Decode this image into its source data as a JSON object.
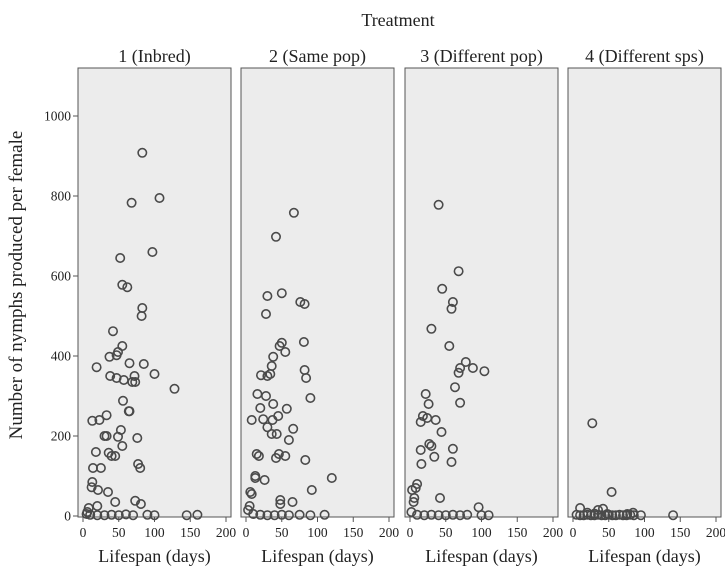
{
  "chart_data": {
    "type": "scatter",
    "title": "Treatment",
    "ylabel": "Number of nymphs produced per female",
    "xlabel": "Lifespan (days)",
    "xlim": [
      0,
      200
    ],
    "ylim": [
      0,
      1100
    ],
    "xticks": [
      0,
      50,
      100,
      150,
      200
    ],
    "yticks": [
      0,
      200,
      400,
      600,
      800,
      1000
    ],
    "grid": false,
    "marker": "open-circle",
    "panels": [
      {
        "label": "1 (Inbred)",
        "points": [
          [
            83,
            908
          ],
          [
            107,
            795
          ],
          [
            68,
            783
          ],
          [
            52,
            645
          ],
          [
            97,
            660
          ],
          [
            55,
            578
          ],
          [
            62,
            572
          ],
          [
            83,
            520
          ],
          [
            82,
            500
          ],
          [
            42,
            462
          ],
          [
            49,
            410
          ],
          [
            55,
            425
          ],
          [
            37,
            398
          ],
          [
            47,
            402
          ],
          [
            19,
            372
          ],
          [
            65,
            382
          ],
          [
            85,
            380
          ],
          [
            72,
            350
          ],
          [
            100,
            355
          ],
          [
            38,
            350
          ],
          [
            47,
            345
          ],
          [
            57,
            340
          ],
          [
            69,
            335
          ],
          [
            73,
            335
          ],
          [
            128,
            318
          ],
          [
            56,
            288
          ],
          [
            64,
            262
          ],
          [
            65,
            262
          ],
          [
            13,
            238
          ],
          [
            23,
            240
          ],
          [
            33,
            252
          ],
          [
            53,
            215
          ],
          [
            49,
            198
          ],
          [
            30,
            200
          ],
          [
            33,
            200
          ],
          [
            76,
            195
          ],
          [
            55,
            175
          ],
          [
            18,
            160
          ],
          [
            36,
            158
          ],
          [
            40,
            150
          ],
          [
            45,
            150
          ],
          [
            77,
            130
          ],
          [
            80,
            120
          ],
          [
            25,
            120
          ],
          [
            14,
            120
          ],
          [
            13,
            85
          ],
          [
            12,
            72
          ],
          [
            21,
            65
          ],
          [
            35,
            60
          ],
          [
            73,
            38
          ],
          [
            81,
            30
          ],
          [
            45,
            35
          ],
          [
            20,
            25
          ],
          [
            8,
            20
          ],
          [
            6,
            10
          ],
          [
            5,
            5
          ],
          [
            10,
            3
          ],
          [
            20,
            2
          ],
          [
            30,
            2
          ],
          [
            40,
            3
          ],
          [
            50,
            2
          ],
          [
            60,
            4
          ],
          [
            70,
            2
          ],
          [
            90,
            3
          ],
          [
            100,
            2
          ],
          [
            145,
            2
          ],
          [
            160,
            3
          ]
        ]
      },
      {
        "label": "2 (Same pop)",
        "points": [
          [
            67,
            758
          ],
          [
            42,
            698
          ],
          [
            50,
            557
          ],
          [
            30,
            550
          ],
          [
            82,
            530
          ],
          [
            76,
            535
          ],
          [
            28,
            505
          ],
          [
            50,
            433
          ],
          [
            47,
            425
          ],
          [
            55,
            410
          ],
          [
            81,
            435
          ],
          [
            38,
            398
          ],
          [
            36,
            375
          ],
          [
            21,
            352
          ],
          [
            30,
            350
          ],
          [
            34,
            355
          ],
          [
            84,
            345
          ],
          [
            82,
            365
          ],
          [
            16,
            305
          ],
          [
            28,
            300
          ],
          [
            20,
            270
          ],
          [
            38,
            280
          ],
          [
            57,
            268
          ],
          [
            90,
            295
          ],
          [
            45,
            250
          ],
          [
            37,
            240
          ],
          [
            24,
            242
          ],
          [
            8,
            240
          ],
          [
            30,
            222
          ],
          [
            66,
            218
          ],
          [
            43,
            205
          ],
          [
            36,
            205
          ],
          [
            60,
            190
          ],
          [
            15,
            155
          ],
          [
            18,
            150
          ],
          [
            42,
            145
          ],
          [
            55,
            150
          ],
          [
            46,
            155
          ],
          [
            83,
            140
          ],
          [
            13,
            100
          ],
          [
            13,
            95
          ],
          [
            26,
            90
          ],
          [
            120,
            95
          ],
          [
            6,
            60
          ],
          [
            8,
            55
          ],
          [
            92,
            65
          ],
          [
            48,
            40
          ],
          [
            48,
            30
          ],
          [
            65,
            35
          ],
          [
            5,
            25
          ],
          [
            3,
            15
          ],
          [
            10,
            5
          ],
          [
            20,
            3
          ],
          [
            30,
            2
          ],
          [
            40,
            2
          ],
          [
            50,
            3
          ],
          [
            60,
            2
          ],
          [
            75,
            3
          ],
          [
            90,
            2
          ],
          [
            110,
            3
          ]
        ]
      },
      {
        "label": "3 (Different pop)",
        "points": [
          [
            40,
            778
          ],
          [
            68,
            612
          ],
          [
            45,
            568
          ],
          [
            60,
            535
          ],
          [
            58,
            518
          ],
          [
            30,
            468
          ],
          [
            55,
            425
          ],
          [
            78,
            385
          ],
          [
            70,
            370
          ],
          [
            88,
            370
          ],
          [
            68,
            358
          ],
          [
            104,
            362
          ],
          [
            63,
            322
          ],
          [
            22,
            305
          ],
          [
            70,
            283
          ],
          [
            26,
            280
          ],
          [
            18,
            250
          ],
          [
            24,
            245
          ],
          [
            15,
            235
          ],
          [
            36,
            240
          ],
          [
            44,
            210
          ],
          [
            27,
            180
          ],
          [
            30,
            175
          ],
          [
            15,
            165
          ],
          [
            60,
            168
          ],
          [
            34,
            148
          ],
          [
            58,
            135
          ],
          [
            16,
            130
          ],
          [
            10,
            80
          ],
          [
            8,
            70
          ],
          [
            3,
            65
          ],
          [
            6,
            45
          ],
          [
            42,
            45
          ],
          [
            5,
            35
          ],
          [
            96,
            22
          ],
          [
            2,
            10
          ],
          [
            10,
            3
          ],
          [
            20,
            2
          ],
          [
            30,
            3
          ],
          [
            40,
            2
          ],
          [
            50,
            2
          ],
          [
            60,
            3
          ],
          [
            70,
            2
          ],
          [
            80,
            3
          ],
          [
            100,
            2
          ],
          [
            110,
            2
          ]
        ]
      },
      {
        "label": "4 (Different sps)",
        "points": [
          [
            27,
            232
          ],
          [
            54,
            60
          ],
          [
            10,
            20
          ],
          [
            42,
            18
          ],
          [
            35,
            15
          ],
          [
            20,
            8
          ],
          [
            30,
            6
          ],
          [
            48,
            5
          ],
          [
            76,
            5
          ],
          [
            84,
            8
          ],
          [
            5,
            3
          ],
          [
            10,
            2
          ],
          [
            15,
            2
          ],
          [
            20,
            3
          ],
          [
            25,
            2
          ],
          [
            30,
            2
          ],
          [
            35,
            3
          ],
          [
            40,
            2
          ],
          [
            45,
            2
          ],
          [
            50,
            3
          ],
          [
            55,
            2
          ],
          [
            60,
            2
          ],
          [
            65,
            3
          ],
          [
            70,
            2
          ],
          [
            75,
            2
          ],
          [
            80,
            3
          ],
          [
            85,
            2
          ],
          [
            95,
            2
          ],
          [
            140,
            2
          ]
        ]
      }
    ]
  }
}
